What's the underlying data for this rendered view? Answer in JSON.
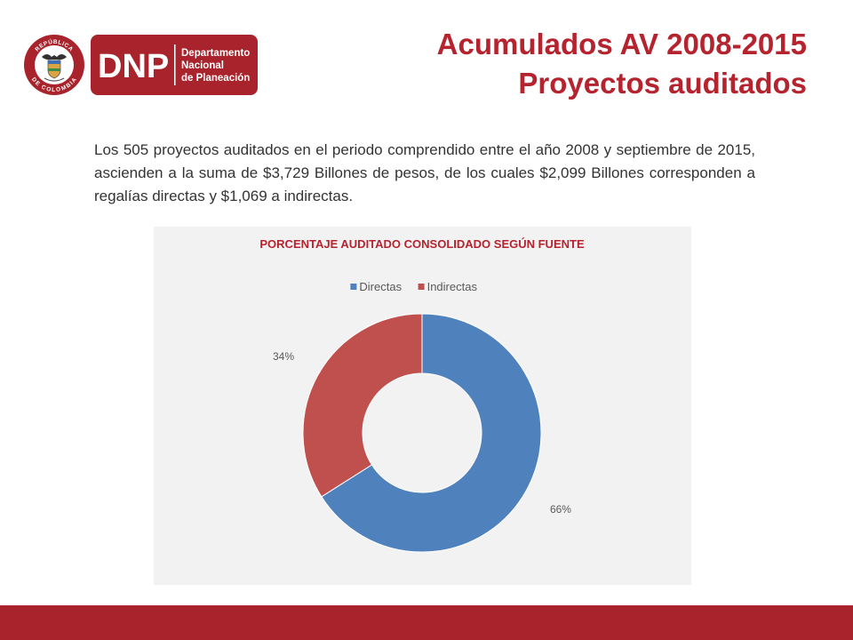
{
  "header": {
    "title_line1": "Acumulados AV 2008-2015",
    "title_line2": "Proyectos auditados",
    "logo": {
      "acronym": "DNP",
      "name_line1": "Departamento",
      "name_line2": "Nacional",
      "name_line3": "de Planeación",
      "seal_top_text": "REPÚBLICA",
      "seal_bottom_text": "DE COLOMBIA",
      "brand_color": "#a8232c"
    }
  },
  "body": {
    "paragraph": "Los 505 proyectos auditados en el periodo comprendido entre el año 2008 y septiembre de 2015, ascienden a la suma de $3,729 Billones de pesos, de los cuales $2,099 Billones corresponden a regalías directas y $1,069 a indirectas."
  },
  "chart_data": {
    "type": "pie",
    "style": "donut",
    "title": "PORCENTAJE AUDITADO CONSOLIDADO SEGÚN FUENTE",
    "legend_position": "top",
    "slices": [
      {
        "name": "Directas",
        "value": 66,
        "label": "66%",
        "color": "#4f81bd"
      },
      {
        "name": "Indirectas",
        "value": 34,
        "label": "34%",
        "color": "#c0504d"
      }
    ]
  },
  "footer": {
    "bar_color": "#a8232c"
  }
}
